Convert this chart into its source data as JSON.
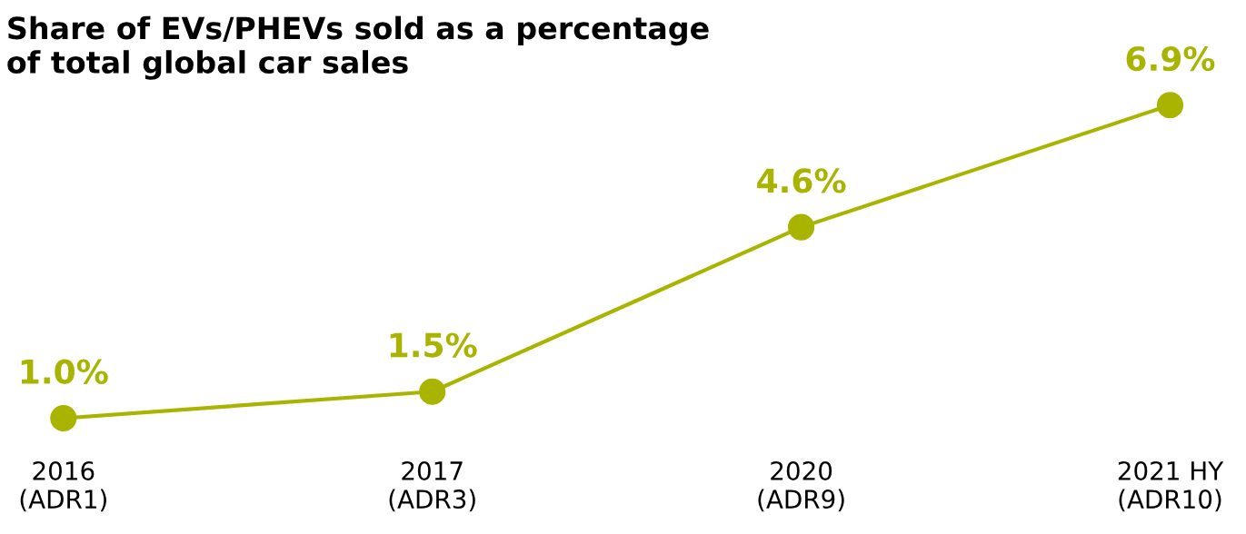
{
  "chart_data": {
    "type": "line",
    "title": "Share of EVs/PHEVs sold as a percentage\nof total global car sales",
    "categories": [
      "2016\n(ADR1)",
      "2017\n(ADR3)",
      "2020\n(ADR9)",
      "2021 HY\n(ADR10)"
    ],
    "series": [
      {
        "color": "#a9b400",
        "values": [
          1.0,
          1.5,
          4.6,
          6.9
        ],
        "value_labels": [
          "1.0%",
          "1.5%",
          "4.6%",
          "6.9%"
        ]
      }
    ],
    "marker": "circle",
    "line_style": "solid",
    "grid": false,
    "legend": false,
    "tick_labels": "x"
  }
}
